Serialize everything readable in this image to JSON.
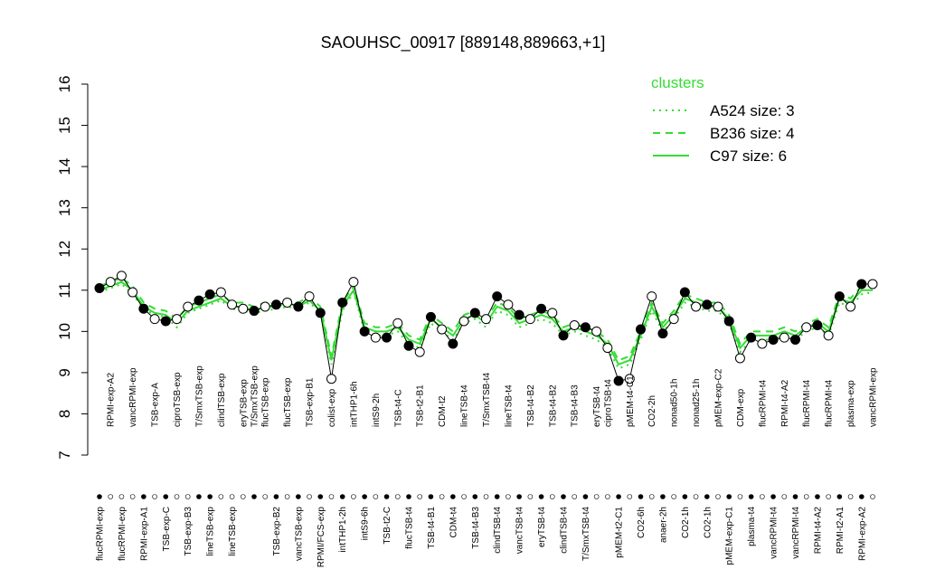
{
  "chart_data": {
    "type": "line",
    "title": "SAOUHSC_00917 [889148,889663,+1]",
    "ylim": [
      7,
      16
    ],
    "yticks": [
      7,
      8,
      9,
      10,
      11,
      12,
      13,
      14,
      15,
      16
    ],
    "legend_title": "clusters",
    "legend_position": "top-right",
    "categories": [
      "flucRPMI-exp",
      "RPMI-exp-A2",
      "flucRPMI-exp",
      "vancRPMI-exp",
      "RPMI-exp-A1",
      "TSB-exp-A",
      "TSB-exp-C",
      "ciproTSB-exp",
      "TSB-exp-B3",
      "T/SmxTSB-exp",
      "lineTSB-exp",
      "clindTSB-exp",
      "lineTSB-exp",
      "eryTSB-exp",
      "T/SmxTSB-exp",
      "flucTSB-exp",
      "TSB-exp-B2",
      "flucTSB-exp",
      "vancTSB-exp",
      "TSB-exp-B1",
      "RPMI/FCS-exp",
      "colist-exp",
      "intTHP1-2h",
      "intTHP1-6h",
      "intS9-6h",
      "intS9-2h",
      "TSB-t2-C",
      "TSB-t4-C",
      "flucTSB-t4",
      "TSB-t2-B1",
      "TSB-t4-B1",
      "CDM-t2",
      "CDM-t4",
      "lineTSB-t4",
      "TSB-t4-B3",
      "T/SmxTSB-t4",
      "clindTSB-t4",
      "lineTSB-t4",
      "vancTSB-t4",
      "TSB-t4-B2",
      "eryTSB-t4",
      "TSB-t4-B2",
      "clindTSB-t4",
      "TSB-t4-B3",
      "T/SmxTSB-t4",
      "eryTSB-t4",
      "ciproTSB-t4",
      "pMEM-t2-C1",
      "pMEM-t4-C1",
      "CO2-6h",
      "CO2-2h",
      "anaer-2h",
      "nonad50-1h",
      "CO2-1h",
      "nonad25-1h",
      "CO2-1h",
      "pMEM-exp-C2",
      "pMEM-exp-C1",
      "CDM-exp",
      "plasma-t4",
      "flucRPMI-t4",
      "vancRPMI-t4",
      "RPMI-t4-A2",
      "vancRPMI-t4",
      "flucRPMI-t4",
      "RPMI-t4-A2",
      "flucRPMI-t4",
      "RPMI-t2-A1",
      "plasma-exp",
      "RPMI-exp-A2",
      "vancRPMI-exp"
    ],
    "label_rows": [
      "bottom",
      "top",
      "bottom",
      "top",
      "bottom",
      "top",
      "bottom",
      "top",
      "bottom",
      "top",
      "bottom",
      "top",
      "bottom",
      "top",
      "top",
      "top",
      "bottom",
      "top",
      "bottom",
      "top",
      "bottom",
      "top",
      "bottom",
      "top",
      "bottom",
      "top",
      "bottom",
      "top",
      "bottom",
      "top",
      "bottom",
      "top",
      "bottom",
      "top",
      "bottom",
      "top",
      "bottom",
      "top",
      "bottom",
      "top",
      "bottom",
      "top",
      "bottom",
      "top",
      "bottom",
      "top",
      "top",
      "bottom",
      "top",
      "bottom",
      "top",
      "bottom",
      "top",
      "bottom",
      "top",
      "bottom",
      "top",
      "bottom",
      "top",
      "bottom",
      "top",
      "bottom",
      "top",
      "bottom",
      "top",
      "bottom",
      "top",
      "bottom",
      "top",
      "bottom",
      "top"
    ],
    "values": [
      11.05,
      11.2,
      11.35,
      10.95,
      10.55,
      10.3,
      10.25,
      10.3,
      10.6,
      10.75,
      10.9,
      10.95,
      10.65,
      10.55,
      10.5,
      10.6,
      10.65,
      10.7,
      10.6,
      10.85,
      10.45,
      8.85,
      10.7,
      11.2,
      10.0,
      9.85,
      9.85,
      10.2,
      9.65,
      9.5,
      10.35,
      10.05,
      9.7,
      10.25,
      10.45,
      10.3,
      10.85,
      10.65,
      10.4,
      10.3,
      10.55,
      10.45,
      9.9,
      10.15,
      10.1,
      10.0,
      9.6,
      8.8,
      8.85,
      10.05,
      10.85,
      9.95,
      10.3,
      10.95,
      10.6,
      10.65,
      10.6,
      10.25,
      9.35,
      9.85,
      9.7,
      9.8,
      9.85,
      9.8,
      10.1,
      10.15,
      9.9,
      10.85,
      10.6,
      11.15,
      11.15
    ],
    "marker_fills": [
      "#000000",
      "#ffffff",
      "#ffffff",
      "#ffffff",
      "#000000",
      "#ffffff",
      "#000000",
      "#ffffff",
      "#ffffff",
      "#000000",
      "#000000",
      "#ffffff",
      "#ffffff",
      "#ffffff",
      "#000000",
      "#ffffff",
      "#000000",
      "#ffffff",
      "#000000",
      "#ffffff",
      "#000000",
      "#ffffff",
      "#000000",
      "#ffffff",
      "#000000",
      "#ffffff",
      "#000000",
      "#ffffff",
      "#000000",
      "#ffffff",
      "#000000",
      "#ffffff",
      "#000000",
      "#ffffff",
      "#000000",
      "#ffffff",
      "#000000",
      "#ffffff",
      "#000000",
      "#ffffff",
      "#000000",
      "#ffffff",
      "#000000",
      "#ffffff",
      "#000000",
      "#ffffff",
      "#ffffff",
      "#000000",
      "#ffffff",
      "#000000",
      "#ffffff",
      "#000000",
      "#ffffff",
      "#000000",
      "#ffffff",
      "#000000",
      "#ffffff",
      "#000000",
      "#ffffff",
      "#000000",
      "#ffffff",
      "#000000",
      "#ffffff",
      "#000000",
      "#ffffff",
      "#000000",
      "#ffffff",
      "#000000",
      "#ffffff",
      "#000000",
      "#ffffff"
    ],
    "line_color": "#000000",
    "series": [
      {
        "name": "A524 size: 3",
        "color": "#33dd33",
        "dash": "dotted",
        "values": [
          10.95,
          11.05,
          11.15,
          10.9,
          10.55,
          10.4,
          10.35,
          10.1,
          10.45,
          10.55,
          10.65,
          10.75,
          10.55,
          10.5,
          10.45,
          10.5,
          10.55,
          10.6,
          10.55,
          10.7,
          10.45,
          9.2,
          10.5,
          10.95,
          10.0,
          9.9,
          9.9,
          10.0,
          9.7,
          9.6,
          10.2,
          10.0,
          9.8,
          10.2,
          10.3,
          10.1,
          10.5,
          10.4,
          10.1,
          10.2,
          10.3,
          10.2,
          9.9,
          10.0,
          9.9,
          9.8,
          9.6,
          9.1,
          9.2,
          9.8,
          10.5,
          10.0,
          10.3,
          10.7,
          10.6,
          10.5,
          10.5,
          10.2,
          9.5,
          9.8,
          9.8,
          9.8,
          9.9,
          9.8,
          10.0,
          10.1,
          9.9,
          10.7,
          10.6,
          10.9,
          10.95
        ]
      },
      {
        "name": "B236 size: 4",
        "color": "#33dd33",
        "dash": "dashed",
        "values": [
          11.1,
          11.2,
          11.3,
          11.1,
          10.7,
          10.55,
          10.5,
          10.3,
          10.6,
          10.7,
          10.8,
          10.9,
          10.7,
          10.7,
          10.6,
          10.7,
          10.7,
          10.8,
          10.7,
          10.85,
          10.6,
          9.4,
          10.7,
          11.1,
          10.2,
          10.1,
          10.1,
          10.2,
          9.9,
          9.8,
          10.4,
          10.2,
          10.0,
          10.4,
          10.5,
          10.3,
          10.7,
          10.6,
          10.3,
          10.4,
          10.5,
          10.4,
          10.1,
          10.2,
          10.1,
          10.0,
          9.8,
          9.3,
          9.4,
          10.0,
          10.7,
          10.2,
          10.5,
          10.9,
          10.8,
          10.7,
          10.7,
          10.4,
          9.7,
          10.0,
          10.0,
          10.0,
          10.1,
          10.0,
          10.2,
          10.3,
          10.1,
          10.9,
          10.8,
          11.1,
          11.1
        ]
      },
      {
        "name": "C97 size: 6",
        "color": "#33dd33",
        "dash": "solid",
        "values": [
          11.0,
          11.1,
          11.2,
          11.0,
          10.6,
          10.45,
          10.4,
          10.2,
          10.5,
          10.6,
          10.7,
          10.8,
          10.6,
          10.6,
          10.5,
          10.6,
          10.6,
          10.7,
          10.6,
          10.75,
          10.5,
          9.3,
          10.6,
          11.0,
          10.1,
          10.0,
          10.0,
          10.1,
          9.8,
          9.7,
          10.3,
          10.1,
          9.9,
          10.3,
          10.4,
          10.2,
          10.6,
          10.5,
          10.2,
          10.3,
          10.4,
          10.3,
          10.0,
          10.1,
          10.0,
          9.9,
          9.7,
          9.2,
          9.3,
          9.9,
          10.6,
          10.1,
          10.4,
          10.8,
          10.7,
          10.6,
          10.6,
          10.3,
          9.6,
          9.9,
          9.9,
          9.9,
          10.0,
          9.9,
          10.1,
          10.2,
          10.0,
          10.8,
          10.7,
          11.0,
          11.0
        ]
      }
    ]
  }
}
